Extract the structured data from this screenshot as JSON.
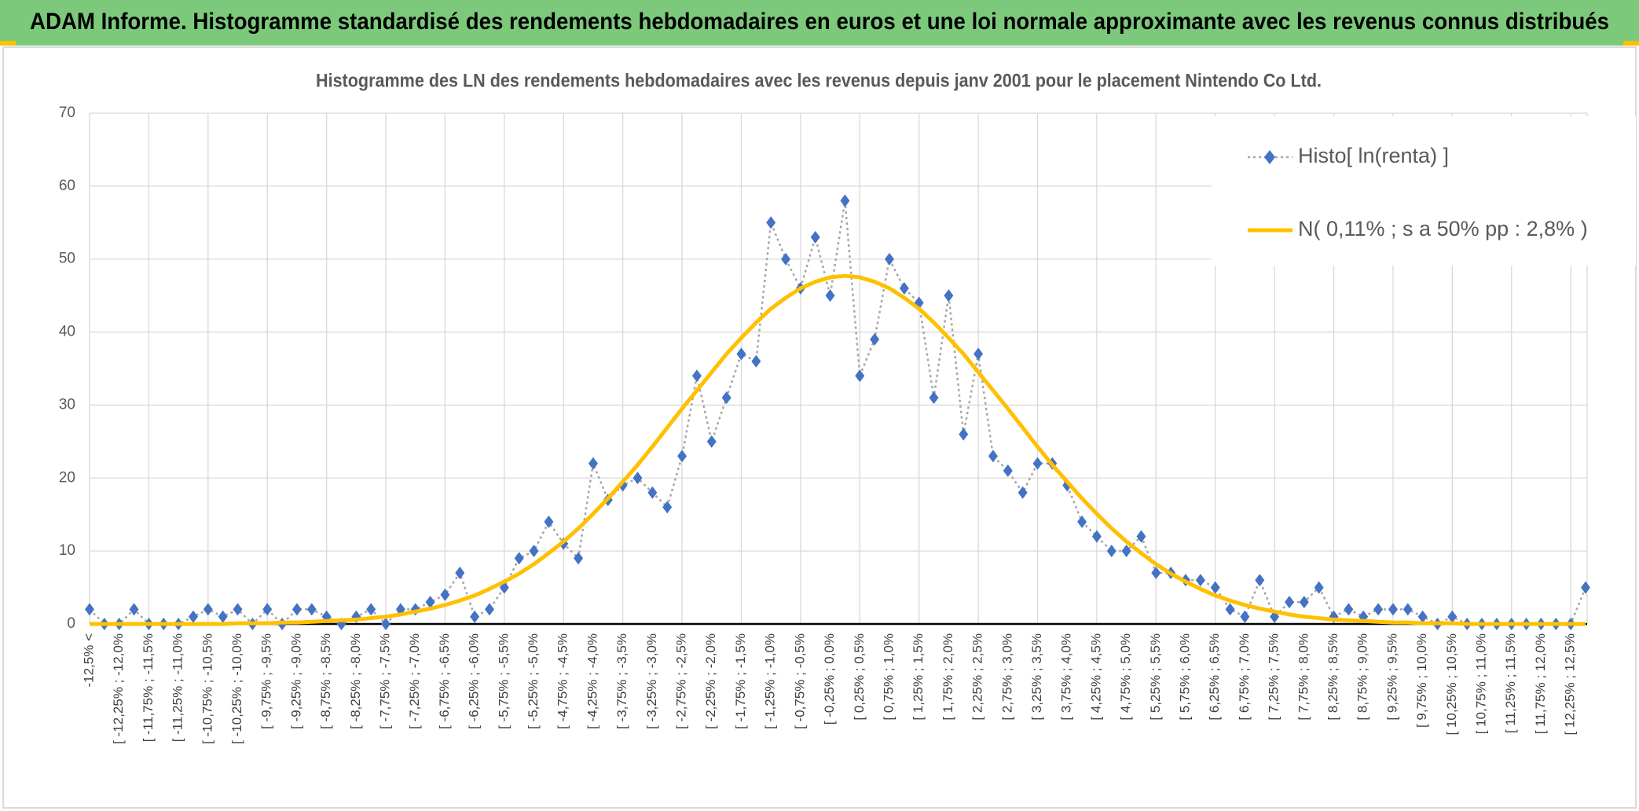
{
  "header": {
    "title": "ADAM Informe. Histogramme standardisé des rendements hebdomadaires en euros et une loi normale approximante avec les revenus connus distribués"
  },
  "chart_data": {
    "type": "line",
    "title": "Histogramme des LN des rendements hebdomadaires avec les revenus depuis janv 2001 pour le placement Nintendo Co Ltd.",
    "categories": [
      "-12,5% <",
      null,
      "[ -12,25% ; -12,0%",
      null,
      "[ -11,75% ; -11,5%",
      null,
      "[ -11,25% ; -11,0%",
      null,
      "[ -10,75% ; -10,5%",
      null,
      "[ -10,25% ; -10,0%",
      null,
      "[ -9,75% ; -9,5%",
      null,
      "[ -9,25% ; -9,0%",
      null,
      "[ -8,75% ; -8,5%",
      null,
      "[ -8,25% ; -8,0%",
      null,
      "[ -7,75% ; -7,5%",
      null,
      "[ -7,25% ; -7,0%",
      null,
      "[ -6,75% ; -6,5%",
      null,
      "[ -6,25% ; -6,0%",
      null,
      "[ -5,75% ; -5,5%",
      null,
      "[ -5,25% ; -5,0%",
      null,
      "[ -4,75% ; -4,5%",
      null,
      "[ -4,25% ; -4,0%",
      null,
      "[ -3,75% ; -3,5%",
      null,
      "[ -3,25% ; -3,0%",
      null,
      "[ -2,75% ; -2,5%",
      null,
      "[ -2,25% ; -2,0%",
      null,
      "[ -1,75% ; -1,5%",
      null,
      "[ -1,25% ; -1,0%",
      null,
      "[ -0,75% ; -0,5%",
      null,
      "[ -0,25% ; 0,0%",
      null,
      "[ 0,25% ; 0,5%",
      null,
      "[ 0,75% ; 1,0%",
      null,
      "[ 1,25% ; 1,5%",
      null,
      "[ 1,75% ; 2,0%",
      null,
      "[ 2,25% ; 2,5%",
      null,
      "[ 2,75% ; 3,0%",
      null,
      "[ 3,25% ; 3,5%",
      null,
      "[ 3,75% ; 4,0%",
      null,
      "[ 4,25% ; 4,5%",
      null,
      "[ 4,75% ; 5,0%",
      null,
      "[ 5,25% ; 5,5%",
      null,
      "[ 5,75% ; 6,0%",
      null,
      "[ 6,25% ; 6,5%",
      null,
      "[ 6,75% ; 7,0%",
      null,
      "[ 7,25% ; 7,5%",
      null,
      "[ 7,75% ; 8,0%",
      null,
      "[ 8,25% ; 8,5%",
      null,
      "[ 8,75% ; 9,0%",
      null,
      "[ 9,25% ; 9,5%",
      null,
      "[ 9,75% ; 10,0%",
      null,
      "[ 10,25% ; 10,5%",
      null,
      "[ 10,75% ; 11,0%",
      null,
      "[ 11,25% ; 11,5%",
      null,
      "[ 11,75% ; 12,0%",
      null,
      "[ 12,25% ; 12,5%",
      null
    ],
    "series": [
      {
        "name": "Histo[ ln(renta) ]",
        "color": "#4472c4",
        "line_color": "#a6a6a6",
        "line_style": "dotted",
        "marker": "diamond",
        "values": [
          2,
          0,
          0,
          2,
          0,
          0,
          0,
          1,
          2,
          1,
          2,
          0,
          2,
          0,
          2,
          2,
          1,
          0,
          1,
          2,
          0,
          2,
          2,
          3,
          4,
          7,
          1,
          2,
          5,
          9,
          10,
          14,
          11,
          9,
          22,
          17,
          19,
          20,
          18,
          16,
          23,
          34,
          25,
          31,
          37,
          36,
          55,
          50,
          46,
          53,
          45,
          58,
          34,
          39,
          50,
          46,
          44,
          31,
          45,
          26,
          37,
          23,
          21,
          18,
          22,
          22,
          19,
          14,
          12,
          10,
          10,
          12,
          7,
          7,
          6,
          6,
          5,
          2,
          1,
          6,
          1,
          3,
          3,
          5,
          1,
          2,
          1,
          2,
          2,
          2,
          1,
          0,
          1,
          0,
          0,
          0,
          0,
          0,
          0,
          0,
          0,
          5
        ]
      },
      {
        "name": "N( 0,11% ; s a 50% pp : 2,8% )",
        "color": "#ffc000",
        "line_style": "solid",
        "marker": "none",
        "values": [
          0,
          0,
          0,
          0,
          0,
          0,
          0,
          0,
          0,
          0,
          0.1,
          0.1,
          0.1,
          0.2,
          0.2,
          0.3,
          0.4,
          0.5,
          0.6,
          0.8,
          1.0,
          1.3,
          1.7,
          2.1,
          2.6,
          3.2,
          3.9,
          4.8,
          5.8,
          6.9,
          8.2,
          9.7,
          11.3,
          13.1,
          15.1,
          17.2,
          19.5,
          21.8,
          24.3,
          26.9,
          29.5,
          32.0,
          34.5,
          37.0,
          39.2,
          41.3,
          43.2,
          44.7,
          46.0,
          46.9,
          47.5,
          47.7,
          47.5,
          46.9,
          46.0,
          44.7,
          43.2,
          41.3,
          39.2,
          37.0,
          34.5,
          32.0,
          29.5,
          26.9,
          24.3,
          21.8,
          19.5,
          17.2,
          15.1,
          13.1,
          11.3,
          9.7,
          8.2,
          6.9,
          5.8,
          4.8,
          3.9,
          3.2,
          2.6,
          2.1,
          1.7,
          1.3,
          1.0,
          0.8,
          0.6,
          0.5,
          0.4,
          0.3,
          0.2,
          0.2,
          0.1,
          0.1,
          0.1,
          0,
          0,
          0,
          0,
          0,
          0,
          0,
          0,
          0
        ]
      }
    ],
    "ylim": [
      0,
      70
    ],
    "yticks": [
      0,
      10,
      20,
      30,
      40,
      50,
      60,
      70
    ],
    "grid": true,
    "legend": "top-right"
  }
}
